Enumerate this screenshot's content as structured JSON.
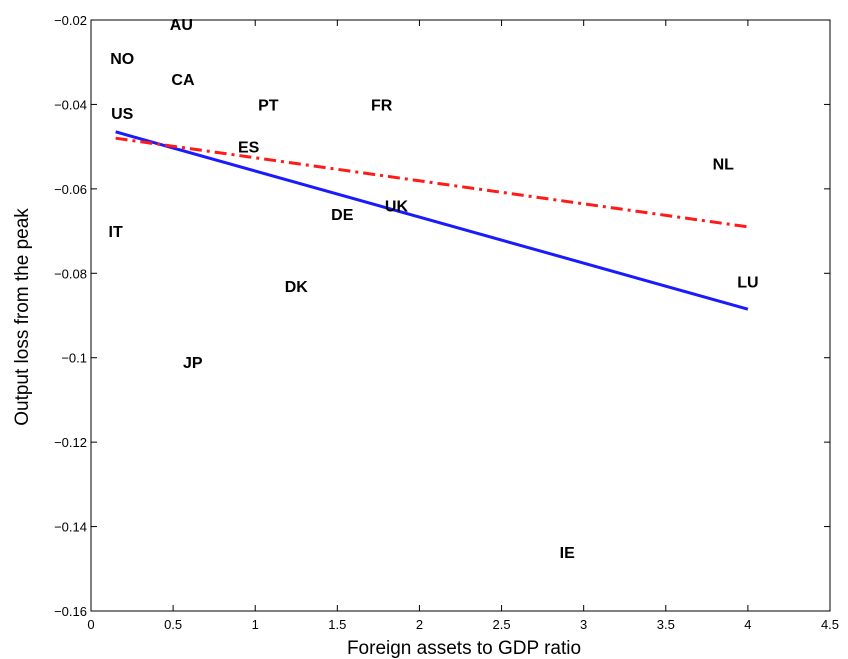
{
  "chart_data": {
    "type": "scatter",
    "title": "",
    "xlabel": "Foreign assets to GDP ratio",
    "ylabel": "Output loss from the peak",
    "xlim": [
      0,
      4.5
    ],
    "ylim": [
      -0.16,
      -0.02
    ],
    "xticks": [
      0,
      0.5,
      1,
      1.5,
      2,
      2.5,
      3,
      3.5,
      4,
      4.5
    ],
    "xtick_labels": [
      "0",
      "0.5",
      "1",
      "1.5",
      "2",
      "2.5",
      "3",
      "3.5",
      "4",
      "4.5"
    ],
    "yticks": [
      -0.16,
      -0.14,
      -0.12,
      -0.1,
      -0.08,
      -0.06,
      -0.04,
      -0.02
    ],
    "ytick_labels": [
      "−0.16",
      "−0.14",
      "−0.12",
      "−0.1",
      "−0.08",
      "−0.06",
      "−0.04",
      "−0.02"
    ],
    "grid": false,
    "points": [
      {
        "label": "AU",
        "x": 0.55,
        "y": -0.021
      },
      {
        "label": "NO",
        "x": 0.19,
        "y": -0.029
      },
      {
        "label": "CA",
        "x": 0.56,
        "y": -0.034
      },
      {
        "label": "US",
        "x": 0.19,
        "y": -0.042
      },
      {
        "label": "PT",
        "x": 1.08,
        "y": -0.04
      },
      {
        "label": "FR",
        "x": 1.77,
        "y": -0.04
      },
      {
        "label": "ES",
        "x": 0.96,
        "y": -0.05
      },
      {
        "label": "NL",
        "x": 3.85,
        "y": -0.054
      },
      {
        "label": "IT",
        "x": 0.15,
        "y": -0.07
      },
      {
        "label": "DE",
        "x": 1.53,
        "y": -0.066
      },
      {
        "label": "UK",
        "x": 1.86,
        "y": -0.064
      },
      {
        "label": "LU",
        "x": 4.0,
        "y": -0.082
      },
      {
        "label": "DK",
        "x": 1.25,
        "y": -0.083
      },
      {
        "label": "JP",
        "x": 0.62,
        "y": -0.101
      },
      {
        "label": "IE",
        "x": 2.9,
        "y": -0.146
      }
    ],
    "lines": [
      {
        "style": "solid",
        "color": "#1a1aff",
        "x": [
          0.15,
          4.0
        ],
        "y": [
          -0.0465,
          -0.0885
        ]
      },
      {
        "style": "dash-dot",
        "color": "#ff1a1a",
        "x": [
          0.15,
          4.0
        ],
        "y": [
          -0.048,
          -0.069
        ]
      }
    ]
  }
}
